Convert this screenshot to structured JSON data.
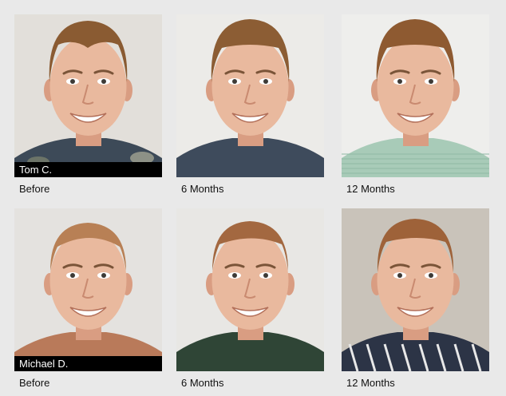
{
  "patients": [
    {
      "name": "Tom C.",
      "photos": [
        {
          "caption": "Before",
          "bg": "#e2dfda",
          "hair": "#8a5b32",
          "hairline": "receding",
          "shirt": "#3d4a58",
          "shirt_pattern": "camo"
        },
        {
          "caption": "6 Months",
          "bg": "#ecebe8",
          "hair": "#8c5d34",
          "hairline": "full",
          "shirt": "#3e4b5c",
          "shirt_pattern": "sweater"
        },
        {
          "caption": "12 Months",
          "bg": "#eeeeec",
          "hair": "#8e5a31",
          "hairline": "full",
          "shirt": "#a8cbb8",
          "shirt_pattern": "plaid"
        }
      ]
    },
    {
      "name": "Michael D.",
      "photos": [
        {
          "caption": "Before",
          "bg": "#e4e2df",
          "hair": "#b88055",
          "hairline": "bald",
          "shirt": "#b97a5a",
          "shirt_pattern": "plain"
        },
        {
          "caption": "6 Months",
          "bg": "#e8e7e4",
          "hair": "#a36840",
          "hairline": "thin",
          "shirt": "#2f4536",
          "shirt_pattern": "plain"
        },
        {
          "caption": "12 Months",
          "bg": "#c9c3ba",
          "hair": "#9e6239",
          "hairline": "medium",
          "shirt": "#2c3446",
          "shirt_pattern": "stripe"
        }
      ]
    }
  ]
}
